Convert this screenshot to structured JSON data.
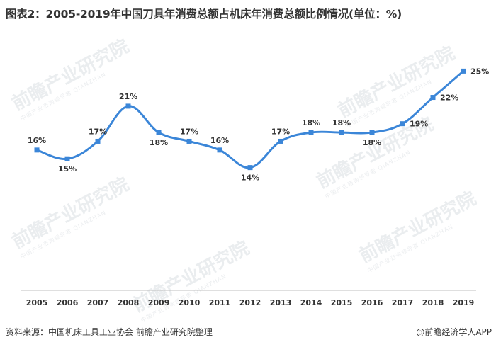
{
  "title": "图表2：2005-2019年中国刀具年消费总额占机床年消费总额比例情况(单位：%)",
  "source": "资料来源：中国机床工具工业协会 前瞻产业研究院整理",
  "brand": "@前瞻经济学人APP",
  "watermark": {
    "text": "前瞻产业研究院",
    "sub": "中国产业咨询领导者 QIANZHAN"
  },
  "colors": {
    "line": "#3b86d8",
    "marker": "#3b86d8",
    "axis": "#bfbfbf",
    "text": "#333333"
  },
  "chart_data": {
    "type": "line",
    "x": [
      "2005",
      "2006",
      "2007",
      "2008",
      "2009",
      "2010",
      "2011",
      "2012",
      "2013",
      "2014",
      "2015",
      "2016",
      "2017",
      "2018",
      "2019"
    ],
    "series": [
      {
        "values": [
          16,
          15,
          17,
          21,
          18,
          17,
          16,
          14,
          17,
          18,
          18,
          18,
          19,
          22,
          25
        ]
      }
    ],
    "data_labels": [
      "16%",
      "15%",
      "17%",
      "21%",
      "18%",
      "17%",
      "16%",
      "14%",
      "17%",
      "18%",
      "18%",
      "18%",
      "19%",
      "22%",
      "25%"
    ],
    "ylim": [
      0,
      26
    ],
    "grid": false,
    "smooth": true
  }
}
